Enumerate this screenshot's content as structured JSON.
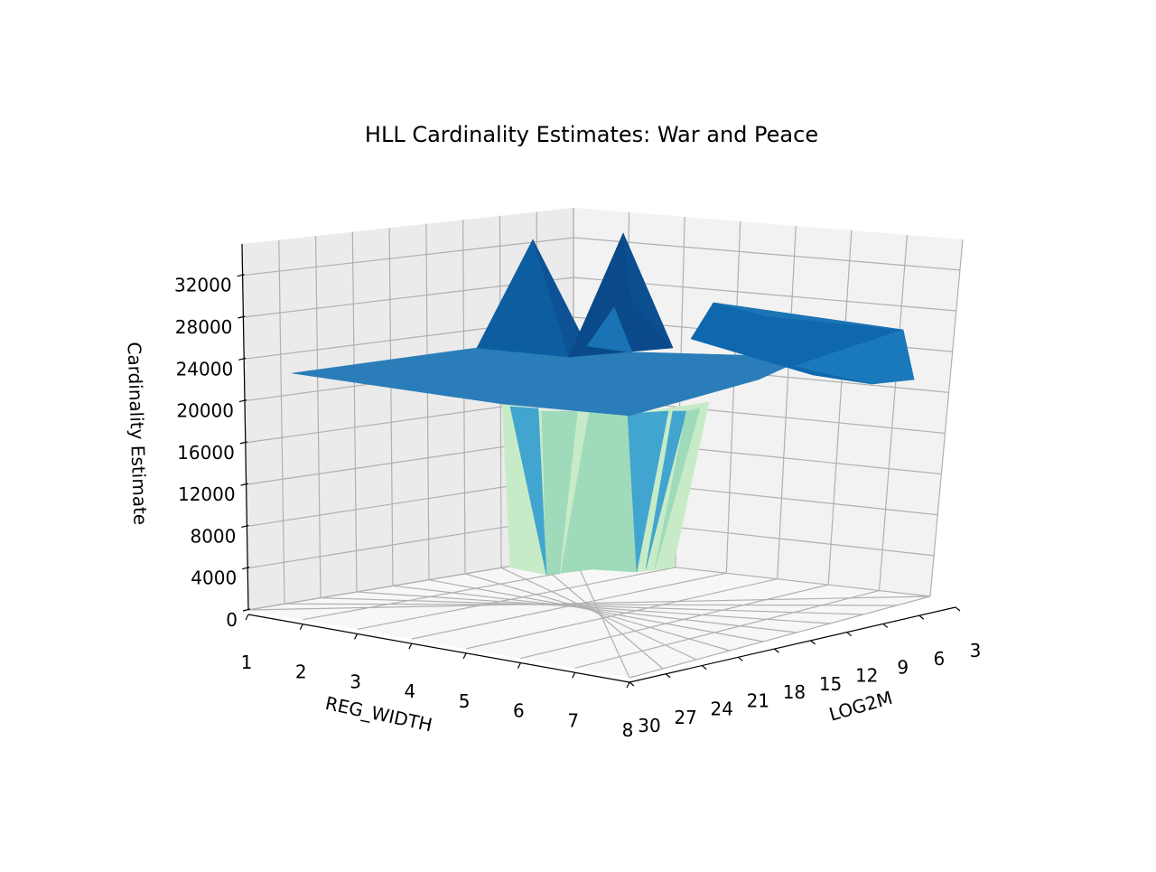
{
  "chart_data": {
    "type": "surface3d",
    "title": "HLL Cardinality Estimates: War and Peace",
    "xlabel": "REG_WIDTH",
    "ylabel": "LOG2M",
    "zlabel": "Cardinality Estimate",
    "x_ticks": [
      "1",
      "2",
      "3",
      "4",
      "5",
      "6",
      "7",
      "8"
    ],
    "y_ticks": [
      "3",
      "6",
      "9",
      "12",
      "15",
      "18",
      "21",
      "24",
      "27",
      "30"
    ],
    "z_ticks": [
      "0",
      "4000",
      "8000",
      "12000",
      "16000",
      "20000",
      "24000",
      "28000",
      "32000"
    ],
    "xlim": [
      1,
      8
    ],
    "ylim": [
      3,
      30
    ],
    "zlim": [
      0,
      35000
    ],
    "colormap": "GnBu",
    "grid": true,
    "description_values": {
      "plateau_estimate": 20500,
      "low_regions_estimate": 0,
      "peak_estimates": [
        32000,
        34000,
        26000
      ]
    }
  },
  "colors": {
    "pane_left": "#ebebeb",
    "pane_right": "#f2f2f2",
    "pane_floor": "#fafafa",
    "grid": "#b0b0b0",
    "surface_plateau": "#2a7db8",
    "surface_peak_dark": "#0a4a8a",
    "surface_peak": "#0c5ea1",
    "surface_mid": "#41a5cf",
    "surface_low": "#9fdabb",
    "surface_lowest": "#c8ebc7"
  }
}
